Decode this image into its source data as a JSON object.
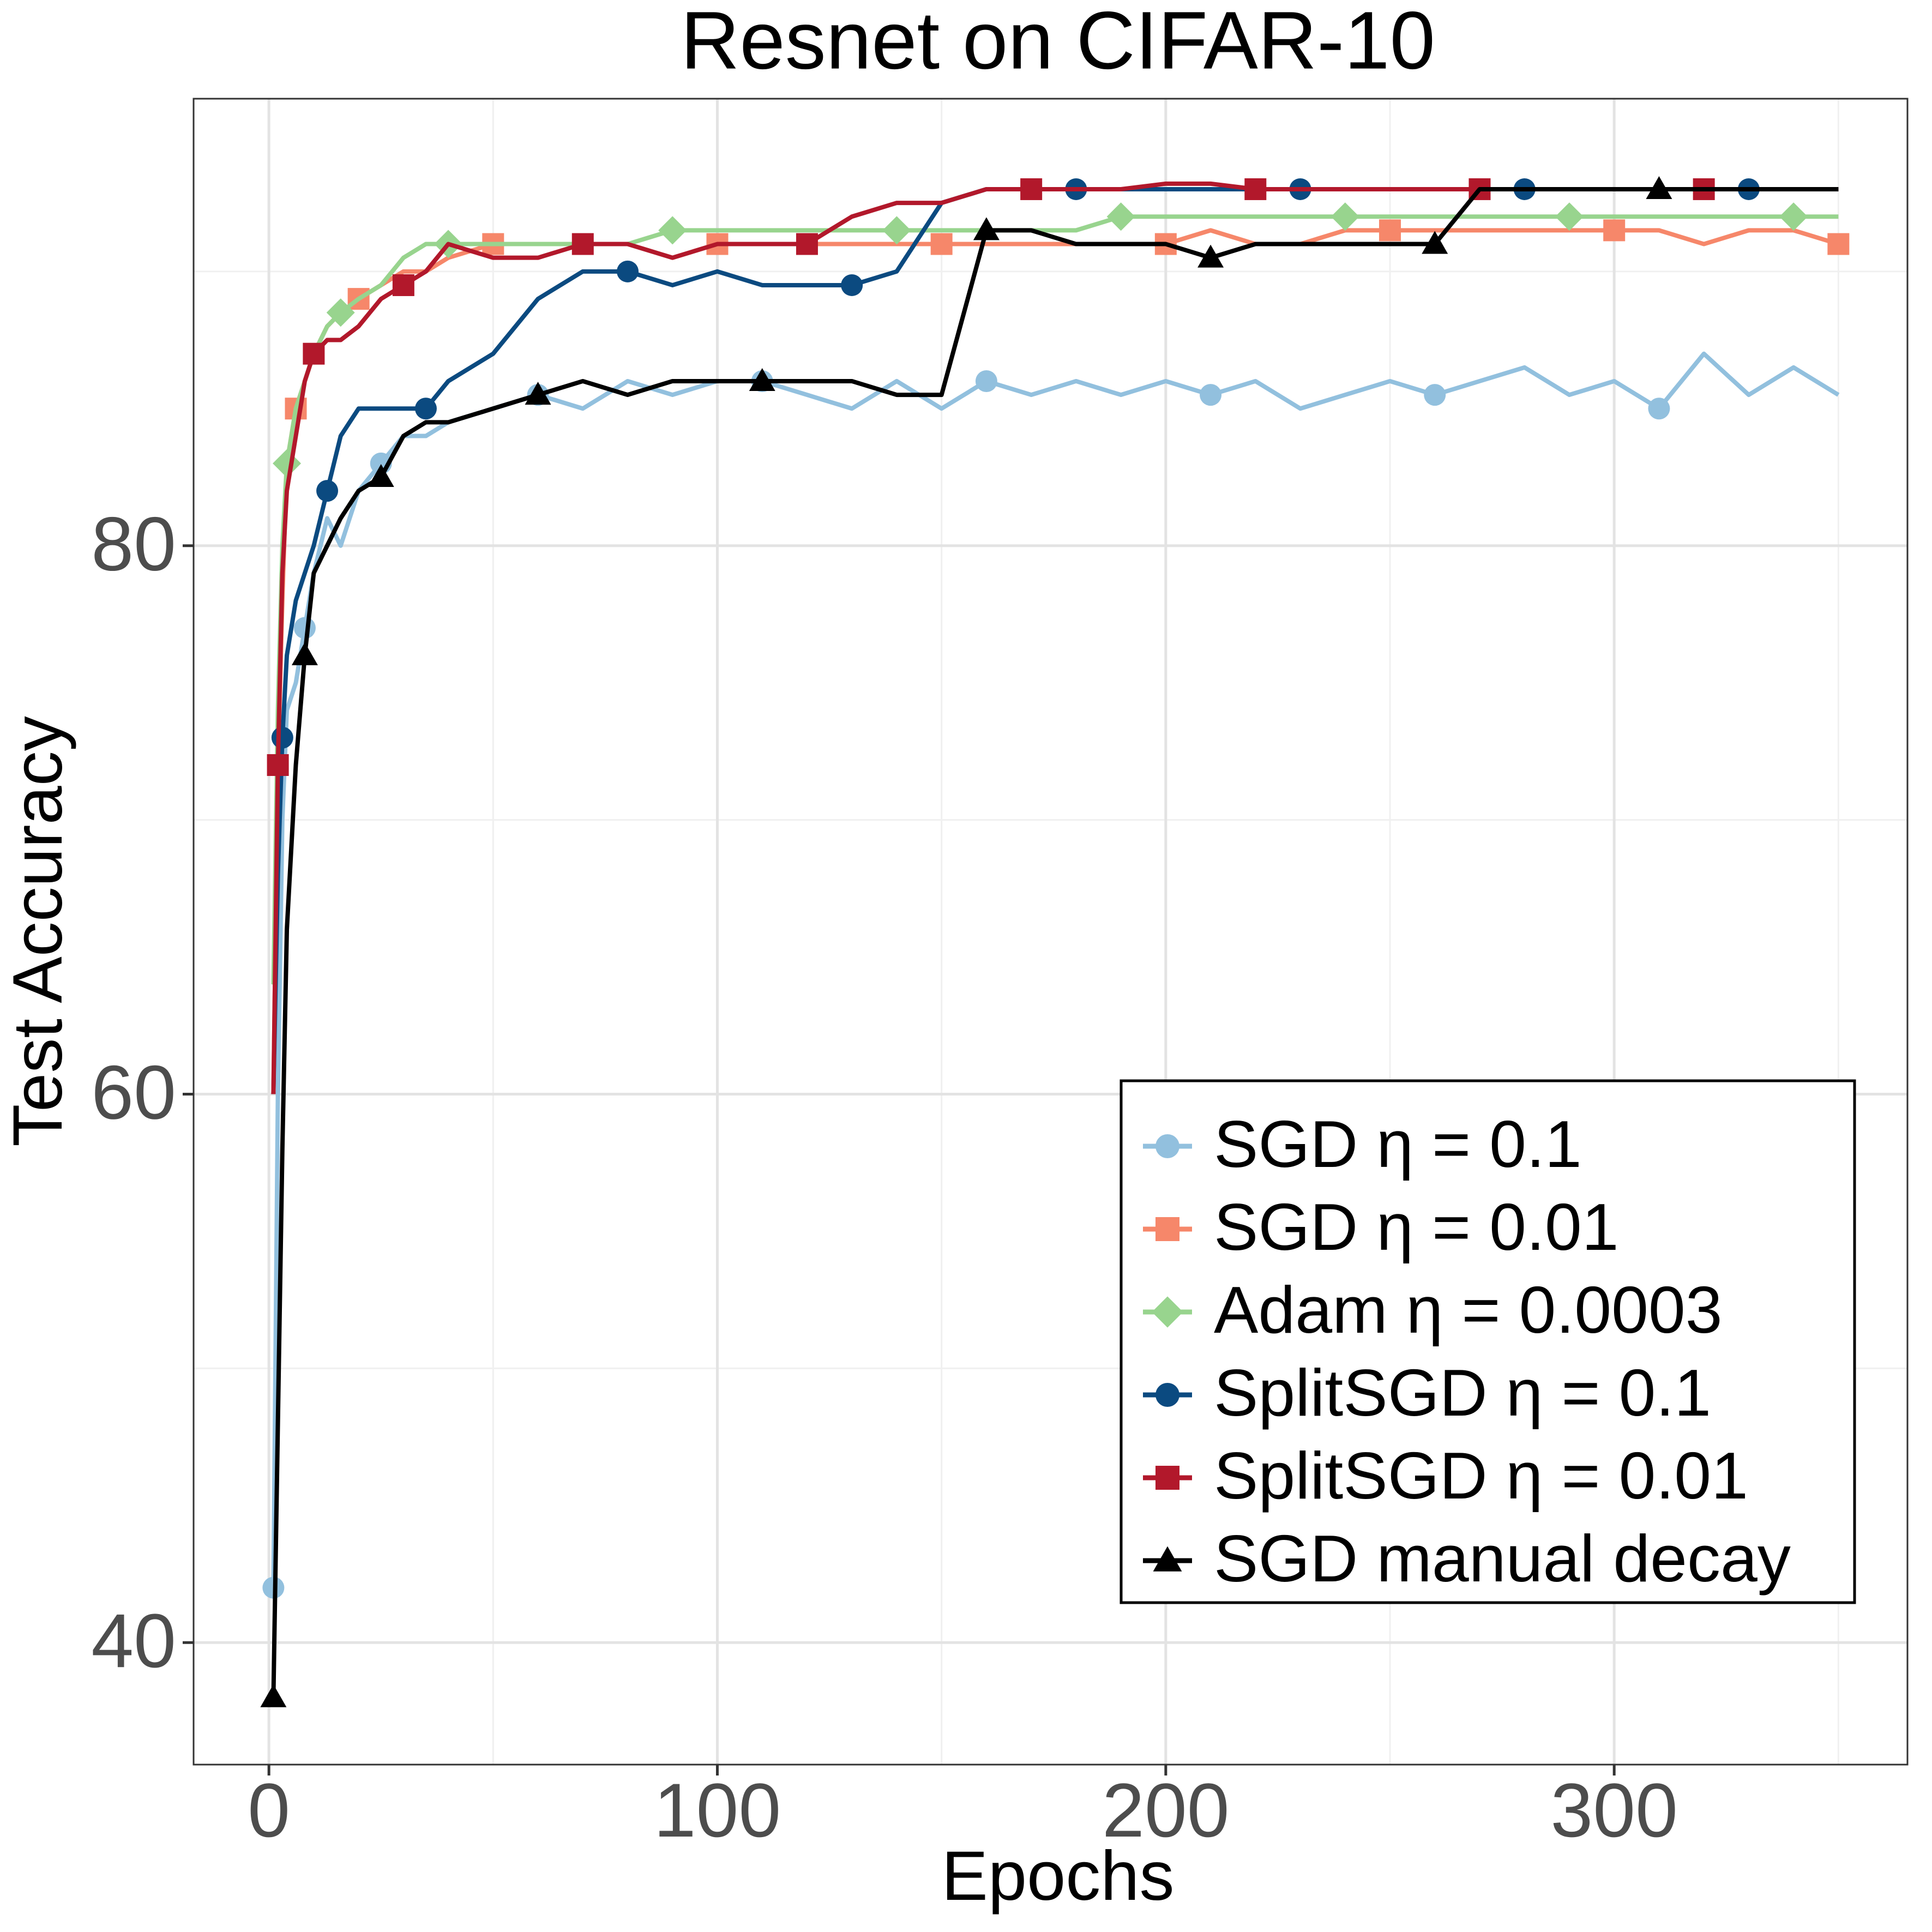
{
  "chart_data": {
    "type": "line",
    "title": "Resnet on CIFAR-10",
    "x_label": "Epochs",
    "y_label": "Test Accuracy",
    "xlim": [
      -16.8,
      365.4
    ],
    "ylim": [
      35.55,
      96.3
    ],
    "xticks": [
      0,
      100,
      200,
      300
    ],
    "yticks": [
      40,
      60,
      80
    ],
    "xminor": [
      50,
      150,
      250,
      350
    ],
    "yminor": [
      50,
      70,
      90
    ],
    "grid": true,
    "legend": "bottom-right",
    "x": [
      1,
      2,
      3,
      4,
      6,
      8,
      10,
      13,
      16,
      20,
      25,
      30,
      35,
      40,
      50,
      60,
      70,
      80,
      90,
      100,
      110,
      120,
      130,
      140,
      150,
      160,
      170,
      180,
      190,
      200,
      210,
      220,
      230,
      240,
      250,
      260,
      270,
      280,
      290,
      300,
      310,
      320,
      330,
      340,
      350
    ],
    "series": [
      {
        "name": "SGD η = 0.1",
        "color": "#92c0de",
        "marker": "circle",
        "values": [
          42,
          60,
          70,
          74,
          75,
          77,
          79,
          81,
          80,
          82,
          83,
          84,
          84,
          84.5,
          85,
          85.5,
          85,
          86,
          85.5,
          86,
          86,
          85.5,
          85,
          86,
          85,
          86,
          85.5,
          86,
          85.5,
          86,
          85.5,
          86,
          85,
          85.5,
          86,
          85.5,
          86,
          86.5,
          85.5,
          86,
          85,
          87,
          85.5,
          86.5,
          85.5
        ]
      },
      {
        "name": "SGD η = 0.01",
        "color": "#f6876a",
        "marker": "square",
        "values": [
          60,
          72,
          78,
          83,
          85,
          86,
          87,
          88,
          88.5,
          89,
          89.5,
          90,
          90,
          90.5,
          91,
          91,
          91,
          91,
          90.5,
          91,
          91,
          91,
          91,
          91,
          91,
          91,
          91,
          91,
          91,
          91,
          91.5,
          91,
          91,
          91.5,
          91.5,
          91.5,
          91.5,
          91.5,
          91.5,
          91.5,
          91.5,
          91,
          91.5,
          91.5,
          91
        ]
      },
      {
        "name": "Adam η = 0.0003",
        "color": "#98d48e",
        "marker": "diamond",
        "values": [
          64,
          74,
          80,
          83,
          85,
          86,
          87,
          88,
          88.5,
          89,
          89.5,
          90.5,
          91,
          91,
          91,
          91,
          91,
          91,
          91.5,
          91.5,
          91.5,
          91.5,
          91.5,
          91.5,
          91.5,
          91.5,
          91.5,
          91.5,
          92,
          92,
          92,
          92,
          92,
          92,
          92,
          92,
          92,
          92,
          92,
          92,
          92,
          92,
          92,
          92,
          92
        ]
      },
      {
        "name": "SplitSGD η = 0.1",
        "color": "#0b4a80",
        "marker": "circle",
        "values": [
          60,
          68,
          73,
          76,
          78,
          79,
          80,
          82,
          84,
          85,
          85,
          85,
          85,
          86,
          87,
          89,
          90,
          90,
          89.5,
          90,
          89.5,
          89.5,
          89.5,
          90,
          92.5,
          93,
          93,
          93,
          93,
          93,
          93,
          93,
          93,
          93,
          93,
          93,
          93,
          93,
          93,
          93,
          93,
          93,
          93,
          93,
          93
        ]
      },
      {
        "name": "SplitSGD η = 0.01",
        "color": "#b2182b",
        "marker": "square",
        "values": [
          60,
          72,
          79,
          82,
          84,
          86,
          87,
          87.5,
          87.5,
          88,
          89,
          89.5,
          90,
          91,
          90.5,
          90.5,
          91,
          91,
          90.5,
          91,
          91,
          91,
          92,
          92.5,
          92.5,
          93,
          93,
          93,
          93,
          93.2,
          93.2,
          93,
          93,
          93,
          93,
          93,
          93,
          93,
          93,
          93,
          93,
          93,
          93,
          93,
          93
        ]
      },
      {
        "name": "SGD manual decay",
        "color": "#000000",
        "marker": "triangle",
        "values": [
          38,
          48,
          58,
          66,
          72,
          76,
          79,
          80,
          81,
          82,
          82.5,
          84,
          84.5,
          84.5,
          85,
          85.5,
          86,
          85.5,
          86,
          86,
          86,
          86,
          86,
          85.5,
          85.5,
          91.5,
          91.5,
          91,
          91,
          91,
          90.5,
          91,
          91,
          91,
          91,
          91,
          93,
          93,
          93,
          93,
          93,
          93,
          93,
          93,
          93
        ]
      }
    ]
  }
}
